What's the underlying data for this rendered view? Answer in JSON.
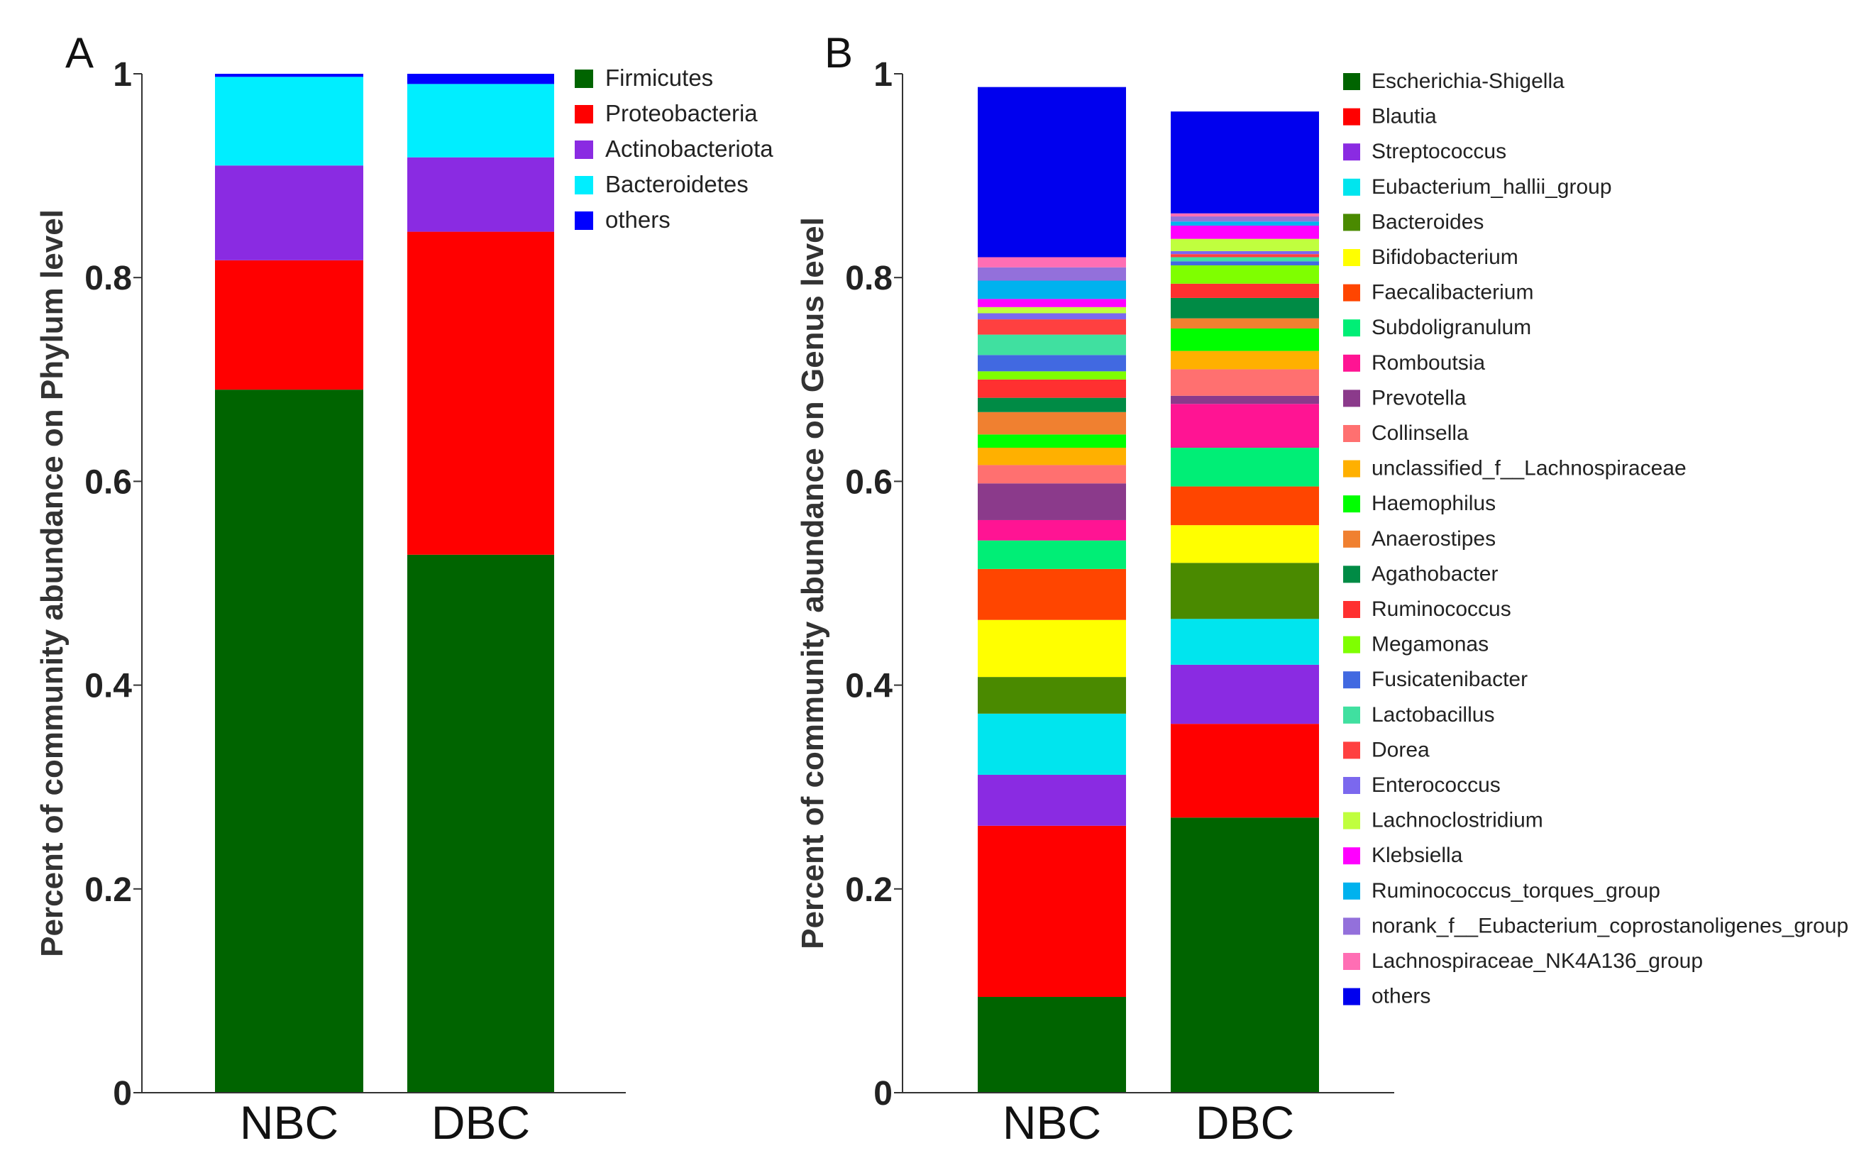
{
  "chart_data": [
    {
      "type": "bar",
      "panel": "A",
      "stacked": true,
      "categories": [
        "NBC",
        "DBC"
      ],
      "ylabel": "Percent of community abundance on Phylum level",
      "ylim": [
        0,
        1
      ],
      "yticks": [
        "0",
        "0.2",
        "0.4",
        "0.6",
        "0.8",
        "1"
      ],
      "legend_position": "top-right",
      "series": [
        {
          "name": "Firmicutes",
          "color": "#006400",
          "values": [
            0.69,
            0.528
          ]
        },
        {
          "name": "Proteobacteria",
          "color": "#ff0000",
          "values": [
            0.127,
            0.317
          ]
        },
        {
          "name": "Actinobacteriota",
          "color": "#8a2be2",
          "values": [
            0.093,
            0.073
          ]
        },
        {
          "name": "Bacteroidetes",
          "color": "#00eeff",
          "values": [
            0.087,
            0.072
          ]
        },
        {
          "name": "others",
          "color": "#0000ff",
          "values": [
            0.003,
            0.01
          ]
        }
      ]
    },
    {
      "type": "bar",
      "panel": "B",
      "stacked": true,
      "categories": [
        "NBC",
        "DBC"
      ],
      "ylabel": "Percent of community abundance on Genus level",
      "ylim": [
        0,
        1
      ],
      "yticks": [
        "0",
        "0.2",
        "0.4",
        "0.6",
        "0.8",
        "1"
      ],
      "legend_position": "top-right",
      "series": [
        {
          "name": "Escherichia-Shigella",
          "color": "#006400",
          "values": [
            0.094,
            0.27
          ]
        },
        {
          "name": "Blautia",
          "color": "#ff0000",
          "values": [
            0.168,
            0.092
          ]
        },
        {
          "name": "Streptococcus",
          "color": "#8a2be2",
          "values": [
            0.05,
            0.058
          ]
        },
        {
          "name": "Eubacterium_hallii_group",
          "color": "#00e5ee",
          "values": [
            0.06,
            0.045
          ]
        },
        {
          "name": "Bacteroides",
          "color": "#4a8a00",
          "values": [
            0.036,
            0.055
          ]
        },
        {
          "name": "Bifidobacterium",
          "color": "#ffff00",
          "values": [
            0.056,
            0.037
          ]
        },
        {
          "name": "Faecalibacterium",
          "color": "#ff4500",
          "values": [
            0.05,
            0.038
          ]
        },
        {
          "name": "Subdoligranulum",
          "color": "#00ee76",
          "values": [
            0.028,
            0.038
          ]
        },
        {
          "name": "Romboutsia",
          "color": "#ff1493",
          "values": [
            0.02,
            0.043
          ]
        },
        {
          "name": "Prevotella",
          "color": "#8b3a8b",
          "values": [
            0.036,
            0.008
          ]
        },
        {
          "name": "Collinsella",
          "color": "#ff7070",
          "values": [
            0.018,
            0.026
          ]
        },
        {
          "name": "unclassified_f__Lachnospiraceae",
          "color": "#ffb000",
          "values": [
            0.017,
            0.018
          ]
        },
        {
          "name": "Haemophilus",
          "color": "#00ff00",
          "values": [
            0.013,
            0.022
          ]
        },
        {
          "name": "Anaerostipes",
          "color": "#f08030",
          "values": [
            0.022,
            0.01
          ]
        },
        {
          "name": "Agathobacter",
          "color": "#008b45",
          "values": [
            0.014,
            0.02
          ]
        },
        {
          "name": "Ruminococcus",
          "color": "#ff3030",
          "values": [
            0.018,
            0.014
          ]
        },
        {
          "name": "Megamonas",
          "color": "#7fff00",
          "values": [
            0.008,
            0.018
          ]
        },
        {
          "name": "Fusicatenibacter",
          "color": "#4169e1",
          "values": [
            0.016,
            0.004
          ]
        },
        {
          "name": "Lactobacillus",
          "color": "#40e0a0",
          "values": [
            0.02,
            0.004
          ]
        },
        {
          "name": "Dorea",
          "color": "#ff4040",
          "values": [
            0.015,
            0.003
          ]
        },
        {
          "name": "Enterococcus",
          "color": "#7b68ee",
          "values": [
            0.006,
            0.003
          ]
        },
        {
          "name": "Lachnoclostridium",
          "color": "#c0ff3e",
          "values": [
            0.006,
            0.012
          ]
        },
        {
          "name": "Klebsiella",
          "color": "#ff00ff",
          "values": [
            0.008,
            0.013
          ]
        },
        {
          "name": "Ruminococcus_torques_group",
          "color": "#00b2ee",
          "values": [
            0.018,
            0.004
          ]
        },
        {
          "name": "norank_f__Eubacterium_coprostanoligenes_group",
          "color": "#9370db",
          "values": [
            0.013,
            0.005
          ]
        },
        {
          "name": "Lachnospiraceae_NK4A136_group",
          "color": "#ff6eb4",
          "values": [
            0.01,
            0.003
          ]
        },
        {
          "name": "others",
          "color": "#0000ee",
          "values": [
            0.167,
            0.1
          ]
        }
      ]
    }
  ]
}
